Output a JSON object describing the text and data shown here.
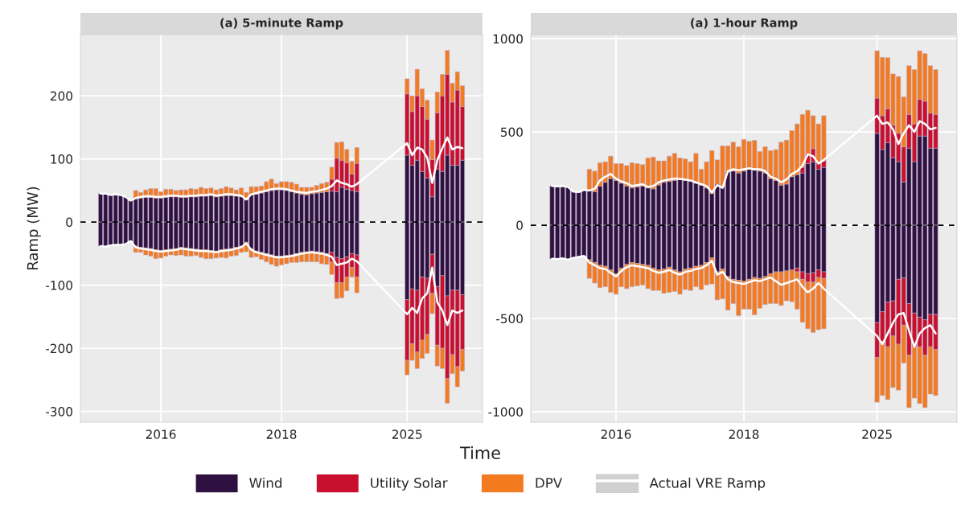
{
  "chart_data": [
    {
      "type": "bar",
      "stacked": true,
      "title": "(a) 5-minute Ramp",
      "ylabel": "Ramp (MW)",
      "xlabel": "Time",
      "legend": "bottom",
      "grid": true,
      "categories": [
        null,
        null,
        null,
        null,
        null,
        null,
        null,
        null,
        null,
        null,
        null,
        null,
        "2016",
        null,
        null,
        null,
        null,
        null,
        null,
        null,
        null,
        null,
        null,
        null,
        null,
        null,
        null,
        null,
        null,
        null,
        null,
        null,
        null,
        null,
        null,
        null,
        "2018",
        null,
        null,
        null,
        null,
        null,
        null,
        null,
        null,
        null,
        null,
        null,
        null,
        null,
        null,
        null,
        null,
        null,
        null,
        null,
        null,
        null,
        null,
        null,
        null,
        "2025",
        null,
        null,
        null,
        null,
        null,
        null,
        null,
        null,
        null,
        null,
        null
      ],
      "ylim": [
        -317,
        297
      ],
      "yticks": [
        -300,
        -200,
        -100,
        0,
        100,
        200
      ],
      "ref_lines": [
        {
          "axis": "y",
          "value": 0,
          "color": "#000000",
          "line_style": "dashed"
        }
      ],
      "series": [
        {
          "name": "Wind",
          "color": "#2e1141",
          "values": [
            45,
            45,
            43,
            44,
            43,
            40,
            34,
            37,
            38,
            39,
            39,
            38,
            38,
            39,
            40,
            40,
            39,
            39,
            40,
            40,
            41,
            41,
            42,
            40,
            41,
            42,
            42,
            41,
            40,
            35,
            43,
            44,
            46,
            48,
            50,
            51,
            51,
            50,
            48,
            46,
            44,
            43,
            45,
            46,
            47,
            48,
            49,
            48,
            55,
            52,
            50,
            48,
            null,
            null,
            null,
            null,
            null,
            null,
            null,
            null,
            null,
            106,
            90,
            98,
            80,
            70,
            40,
            84,
            80,
            106,
            90,
            90,
            98
          ]
        },
        {
          "name": "Utility Solar",
          "color": "#c8102e",
          "values": [
            null,
            null,
            null,
            null,
            null,
            null,
            null,
            null,
            null,
            null,
            null,
            null,
            null,
            null,
            null,
            null,
            null,
            null,
            null,
            null,
            null,
            null,
            null,
            null,
            null,
            null,
            null,
            null,
            null,
            null,
            null,
            null,
            null,
            null,
            null,
            null,
            null,
            null,
            null,
            null,
            null,
            null,
            null,
            null,
            null,
            null,
            19,
            53,
            43,
            42,
            26,
            45,
            null,
            null,
            null,
            null,
            null,
            null,
            null,
            null,
            null,
            97,
            85,
            102,
            103,
            93,
            59,
            89,
            120,
            128,
            100,
            119,
            85
          ]
        },
        {
          "name": "DPV",
          "color": "#f47a20",
          "values": [
            null,
            null,
            null,
            null,
            null,
            null,
            null,
            13,
            9,
            12,
            14,
            15,
            10,
            13,
            12,
            10,
            12,
            12,
            13,
            12,
            14,
            12,
            12,
            11,
            12,
            14,
            12,
            10,
            14,
            12,
            13,
            12,
            11,
            16,
            18,
            10,
            13,
            14,
            15,
            14,
            11,
            12,
            10,
            12,
            14,
            15,
            19,
            25,
            29,
            21,
            20,
            25,
            null,
            null,
            null,
            null,
            null,
            null,
            null,
            null,
            null,
            24,
            25,
            42,
            28,
            30,
            31,
            33,
            34,
            38,
            30,
            29,
            33
          ]
        },
        {
          "color": "#2e1141",
          "values": [
            -38,
            -39,
            -37,
            -36,
            -36,
            -35,
            -30,
            -38,
            -40,
            -41,
            -42,
            -44,
            -45,
            -44,
            -43,
            -42,
            -40,
            -41,
            -42,
            -43,
            -44,
            -44,
            -45,
            -46,
            -44,
            -43,
            -42,
            -40,
            -38,
            -32,
            -42,
            -46,
            -48,
            -50,
            -52,
            -54,
            -54,
            -53,
            -52,
            -50,
            -48,
            -47,
            -46,
            -47,
            -48,
            -50,
            -48,
            -56,
            -58,
            -55,
            -50,
            -52,
            null,
            null,
            null,
            null,
            null,
            null,
            null,
            null,
            null,
            -123,
            -106,
            -108,
            -87,
            -89,
            -51,
            -102,
            -85,
            -117,
            -108,
            -108,
            -115
          ]
        },
        {
          "color": "#c8102e",
          "values": [
            null,
            null,
            null,
            null,
            null,
            null,
            null,
            null,
            null,
            null,
            null,
            null,
            null,
            null,
            null,
            null,
            null,
            null,
            null,
            null,
            null,
            null,
            null,
            null,
            null,
            null,
            null,
            null,
            null,
            null,
            null,
            null,
            null,
            null,
            null,
            null,
            null,
            null,
            null,
            null,
            null,
            null,
            null,
            null,
            null,
            null,
            -15,
            -40,
            -38,
            -32,
            -22,
            -35,
            null,
            null,
            null,
            null,
            null,
            null,
            null,
            null,
            null,
            -96,
            -87,
            -98,
            -100,
            -89,
            -62,
            -93,
            -115,
            -131,
            -102,
            -121,
            -87
          ]
        },
        {
          "color": "#f47a20",
          "values": [
            null,
            null,
            null,
            null,
            null,
            null,
            null,
            -10,
            -8,
            -11,
            -12,
            -14,
            -12,
            -10,
            -9,
            -11,
            -12,
            -13,
            -12,
            -10,
            -12,
            -14,
            -13,
            -11,
            -12,
            -14,
            -12,
            -13,
            -10,
            -15,
            -14,
            -9,
            -11,
            -13,
            -15,
            -16,
            -14,
            -13,
            -12,
            -14,
            -15,
            -16,
            -17,
            -16,
            -18,
            -17,
            -20,
            -25,
            -24,
            -22,
            -15,
            -25,
            null,
            null,
            null,
            null,
            null,
            null,
            null,
            null,
            null,
            -23,
            -26,
            -26,
            -29,
            -30,
            -32,
            -33,
            -32,
            -39,
            -30,
            -32,
            -34
          ]
        },
        {
          "type": "line",
          "name": "Actual VRE Ramp",
          "color": "#ffffff",
          "values": [
            45,
            45,
            43,
            44,
            43,
            40,
            34,
            38,
            40,
            41,
            41,
            40,
            40,
            41,
            42,
            42,
            41,
            41,
            42,
            42,
            43,
            43,
            44,
            42,
            43,
            44,
            44,
            43,
            42,
            36,
            44,
            46,
            48,
            50,
            52,
            53,
            53,
            52,
            50,
            48,
            47,
            46,
            48,
            49,
            51,
            53,
            57,
            66,
            62,
            60,
            56,
            60,
            null,
            null,
            null,
            null,
            null,
            null,
            null,
            null,
            null,
            125,
            106,
            118,
            115,
            102,
            62,
            98,
            117,
            134,
            115,
            119,
            117
          ]
        },
        {
          "type": "line",
          "color": "#ffffff",
          "values": [
            -38,
            -39,
            -37,
            -36,
            -36,
            -35,
            -30,
            -40,
            -42,
            -43,
            -44,
            -46,
            -47,
            -46,
            -45,
            -44,
            -42,
            -43,
            -44,
            -45,
            -46,
            -46,
            -47,
            -48,
            -46,
            -45,
            -44,
            -42,
            -40,
            -34,
            -44,
            -48,
            -50,
            -52,
            -54,
            -56,
            -56,
            -55,
            -54,
            -52,
            -50,
            -49,
            -48,
            -49,
            -50,
            -52,
            -55,
            -68,
            -66,
            -64,
            -58,
            -62,
            null,
            null,
            null,
            null,
            null,
            null,
            null,
            null,
            null,
            -146,
            -136,
            -144,
            -121,
            -113,
            -72,
            -127,
            -140,
            -163,
            -140,
            -144,
            -140
          ]
        }
      ]
    },
    {
      "type": "bar",
      "stacked": true,
      "title": "(a) 1-hour Ramp",
      "grid": true,
      "categories": [
        null,
        null,
        null,
        null,
        null,
        null,
        null,
        null,
        null,
        null,
        null,
        null,
        "2016",
        null,
        null,
        null,
        null,
        null,
        null,
        null,
        null,
        null,
        null,
        null,
        null,
        null,
        null,
        null,
        null,
        null,
        null,
        null,
        null,
        null,
        null,
        null,
        "2018",
        null,
        null,
        null,
        null,
        null,
        null,
        null,
        null,
        null,
        null,
        null,
        null,
        null,
        null,
        null,
        null,
        null,
        null,
        null,
        null,
        null,
        null,
        null,
        null,
        "2025",
        null,
        null,
        null,
        null,
        null,
        null,
        null,
        null,
        null,
        null,
        null
      ],
      "ylim": [
        -1056,
        1022
      ],
      "yticks": [
        -1000,
        -500,
        0,
        500,
        1000
      ],
      "ref_lines": [
        {
          "axis": "y",
          "value": 0,
          "color": "#000000",
          "line_style": "dashed"
        }
      ],
      "series": [
        {
          "color": "#2e1141",
          "values": [
            210,
            208,
            210,
            205,
            180,
            178,
            190,
            186,
            180,
            210,
            230,
            250,
            240,
            225,
            210,
            200,
            205,
            210,
            200,
            195,
            215,
            230,
            235,
            240,
            245,
            240,
            235,
            225,
            215,
            200,
            170,
            220,
            205,
            285,
            290,
            280,
            290,
            300,
            295,
            290,
            280,
            250,
            240,
            215,
            220,
            260,
            270,
            280,
            330,
            340,
            300,
            310,
            null,
            null,
            null,
            null,
            null,
            null,
            null,
            null,
            null,
            493,
            406,
            442,
            362,
            341,
            232,
            413,
            341,
            478,
            478,
            413,
            413
          ]
        },
        {
          "color": "#c8102e",
          "values": [
            null,
            null,
            null,
            null,
            null,
            null,
            null,
            null,
            null,
            null,
            null,
            null,
            null,
            null,
            null,
            null,
            null,
            null,
            null,
            null,
            null,
            null,
            null,
            null,
            null,
            null,
            null,
            null,
            null,
            null,
            null,
            null,
            null,
            null,
            null,
            null,
            null,
            null,
            null,
            null,
            null,
            null,
            null,
            null,
            null,
            null,
            null,
            30,
            50,
            70,
            40,
            35,
            null,
            null,
            null,
            null,
            null,
            null,
            null,
            null,
            null,
            188,
            181,
            181,
            174,
            152,
            188,
            181,
            202,
            196,
            187,
            188,
            181
          ]
        },
        {
          "color": "#f47a20",
          "values": [
            null,
            null,
            null,
            null,
            null,
            null,
            null,
            114,
            110,
            125,
            110,
            120,
            90,
            105,
            110,
            135,
            125,
            115,
            160,
            170,
            130,
            115,
            135,
            145,
            115,
            115,
            105,
            160,
            85,
            140,
            230,
            130,
            220,
            140,
            155,
            140,
            170,
            150,
            160,
            105,
            140,
            150,
            165,
            230,
            236,
            247,
            273,
            284,
            236,
            177,
            203,
            242,
            null,
            null,
            null,
            null,
            null,
            null,
            null,
            null,
            null,
            254,
            313,
            275,
            275,
            304,
            268,
            261,
            291,
            261,
            255,
            254,
            240
          ]
        },
        {
          "color": "#2e1141",
          "values": [
            -180,
            -182,
            -178,
            -185,
            -175,
            -170,
            -165,
            -185,
            -200,
            -215,
            -220,
            -240,
            -260,
            -230,
            -210,
            -200,
            -205,
            -210,
            -215,
            -230,
            -240,
            -235,
            -225,
            -240,
            -250,
            -235,
            -230,
            -220,
            -215,
            -200,
            -175,
            -250,
            -235,
            -275,
            -290,
            -295,
            -300,
            -290,
            -280,
            -285,
            -275,
            -260,
            -250,
            -250,
            -245,
            -240,
            -230,
            -250,
            -260,
            -255,
            -240,
            -250,
            null,
            null,
            null,
            null,
            null,
            null,
            null,
            null,
            null,
            -522,
            -464,
            -413,
            -406,
            -290,
            -283,
            -420,
            -471,
            -493,
            -507,
            -478,
            -478
          ]
        },
        {
          "color": "#c8102e",
          "values": [
            null,
            null,
            null,
            null,
            null,
            null,
            null,
            null,
            null,
            null,
            null,
            null,
            null,
            null,
            null,
            null,
            null,
            null,
            null,
            null,
            null,
            null,
            null,
            null,
            null,
            null,
            null,
            null,
            null,
            null,
            null,
            null,
            null,
            null,
            null,
            null,
            null,
            null,
            null,
            null,
            null,
            null,
            null,
            null,
            null,
            null,
            -20,
            -40,
            -45,
            -50,
            -40,
            -35,
            null,
            null,
            null,
            null,
            null,
            null,
            null,
            null,
            null,
            -188,
            -159,
            -239,
            -188,
            -348,
            -253,
            -276,
            -181,
            -159,
            -189,
            -174,
            -189
          ]
        },
        {
          "color": "#f47a20",
          "values": [
            null,
            null,
            null,
            null,
            null,
            null,
            null,
            -100,
            -110,
            -120,
            -110,
            -120,
            -110,
            -100,
            -130,
            -130,
            -120,
            -110,
            -125,
            -120,
            -110,
            -130,
            -135,
            -115,
            -120,
            -110,
            -120,
            -110,
            -130,
            -120,
            -140,
            -150,
            -160,
            -180,
            -130,
            -190,
            -150,
            -160,
            -200,
            -160,
            -150,
            -160,
            -170,
            -180,
            -160,
            -170,
            -200,
            -230,
            -250,
            -270,
            -280,
            -270,
            null,
            null,
            null,
            null,
            null,
            null,
            null,
            null,
            null,
            -239,
            -290,
            -283,
            -276,
            -246,
            -203,
            -282,
            -275,
            -304,
            -282,
            -253,
            -246
          ]
        },
        {
          "type": "line",
          "color": "#ffffff",
          "values": [
            210,
            208,
            210,
            205,
            180,
            178,
            190,
            186,
            195,
            240,
            260,
            275,
            250,
            235,
            225,
            210,
            215,
            220,
            205,
            210,
            230,
            240,
            245,
            250,
            248,
            245,
            240,
            230,
            220,
            210,
            175,
            215,
            200,
            290,
            300,
            295,
            300,
            305,
            300,
            300,
            290,
            260,
            250,
            230,
            245,
            275,
            290,
            320,
            380,
            370,
            330,
            350,
            null,
            null,
            null,
            null,
            null,
            null,
            null,
            null,
            null,
            587,
            543,
            551,
            514,
            435,
            493,
            536,
            500,
            558,
            543,
            514,
            522
          ]
        },
        {
          "type": "line",
          "color": "#ffffff",
          "values": [
            -180,
            -182,
            -178,
            -185,
            -175,
            -170,
            -165,
            -200,
            -215,
            -230,
            -235,
            -255,
            -275,
            -245,
            -225,
            -215,
            -220,
            -225,
            -230,
            -245,
            -255,
            -250,
            -240,
            -255,
            -265,
            -250,
            -245,
            -235,
            -230,
            -215,
            -190,
            -265,
            -250,
            -290,
            -305,
            -310,
            -315,
            -305,
            -295,
            -300,
            -290,
            -280,
            -300,
            -320,
            -310,
            -300,
            -290,
            -330,
            -360,
            -340,
            -310,
            -340,
            null,
            null,
            null,
            null,
            null,
            null,
            null,
            null,
            null,
            -594,
            -638,
            -580,
            -522,
            -478,
            -471,
            -565,
            -652,
            -580,
            -551,
            -536,
            -580
          ]
        }
      ]
    }
  ]
}
